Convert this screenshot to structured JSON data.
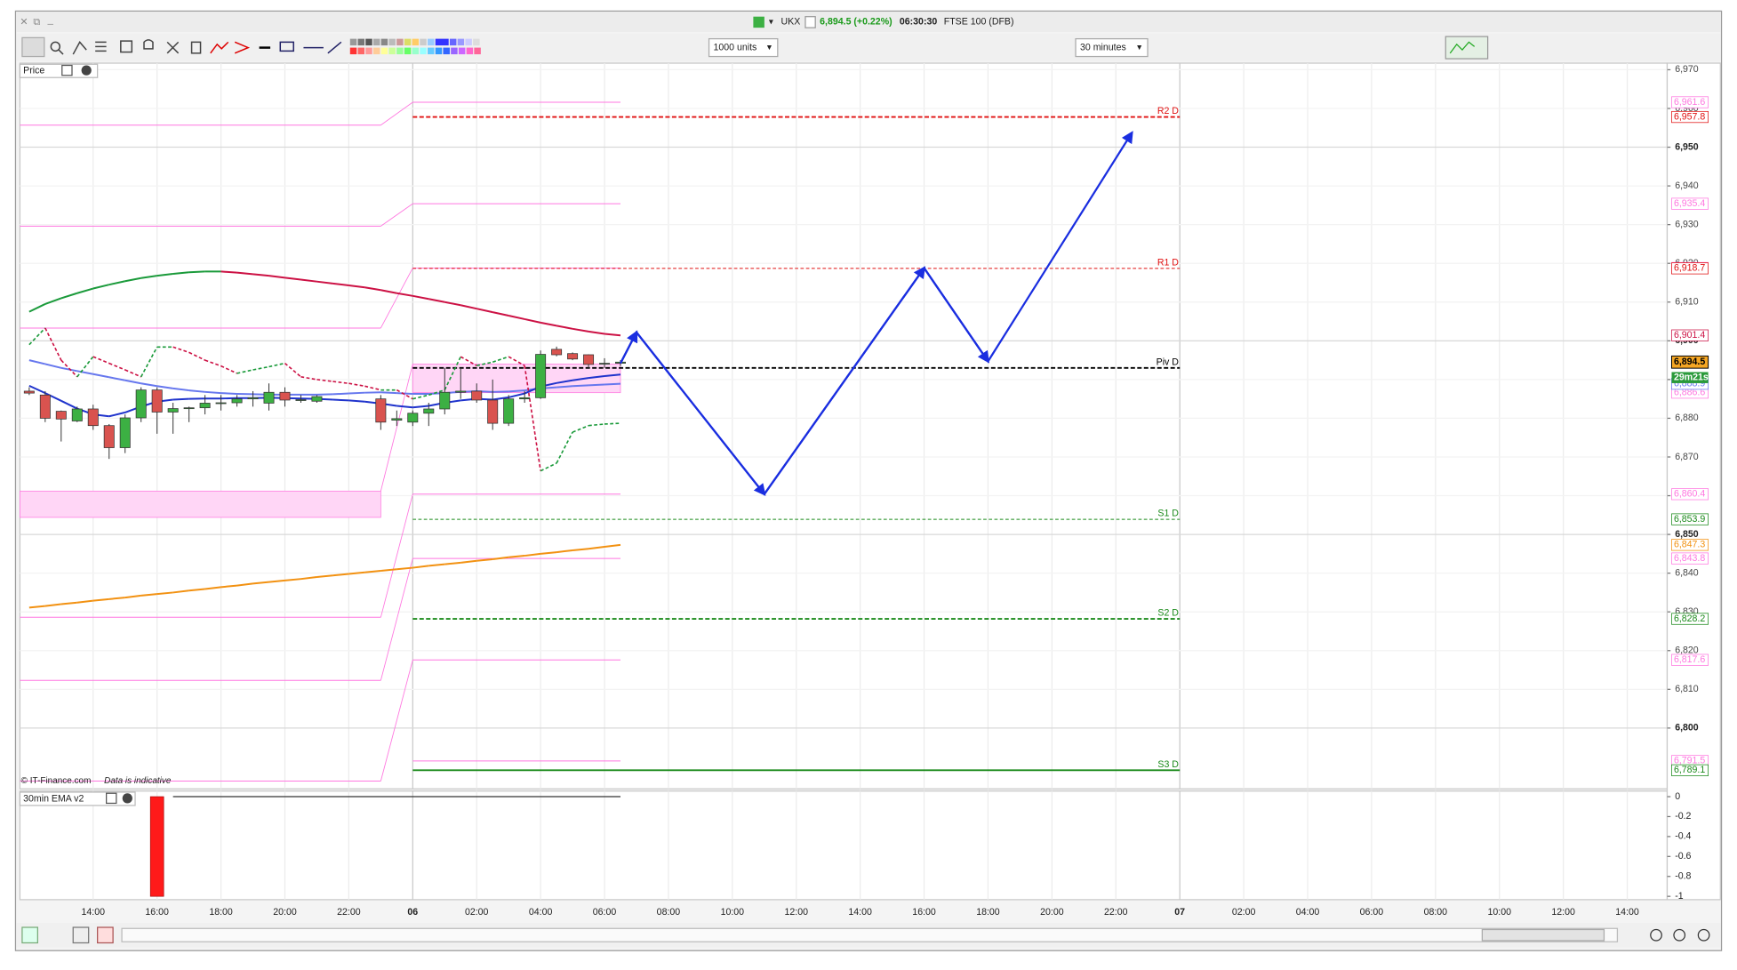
{
  "header": {
    "symbol": "UKX",
    "quote": "6,894.5 (+0.22%)",
    "time": "06:30:30",
    "instrument": "FTSE 100 (DFB)"
  },
  "toolbar": {
    "units": "1000 units",
    "interval": "30 minutes"
  },
  "chart_data": [
    {
      "type": "candlestick",
      "title": "Price",
      "footnote": "© IT-Finance.com",
      "footnote_note": "Data is indicative",
      "xlim": [
        11.71,
        63.25
      ],
      "xticks": [
        {
          "value": 14,
          "label": "14:00"
        },
        {
          "value": 16,
          "label": "16:00"
        },
        {
          "value": 18,
          "label": "18:00"
        },
        {
          "value": 20,
          "label": "20:00"
        },
        {
          "value": 22,
          "label": "22:00"
        },
        {
          "value": 24,
          "label": "06"
        },
        {
          "value": 26,
          "label": "02:00"
        },
        {
          "value": 28,
          "label": "04:00"
        },
        {
          "value": 30,
          "label": "06:00"
        },
        {
          "value": 32,
          "label": "08:00"
        },
        {
          "value": 34,
          "label": "10:00"
        },
        {
          "value": 36,
          "label": "12:00"
        },
        {
          "value": 38,
          "label": "14:00"
        },
        {
          "value": 40,
          "label": "16:00"
        },
        {
          "value": 42,
          "label": "18:00"
        },
        {
          "value": 44,
          "label": "20:00"
        },
        {
          "value": 46,
          "label": "22:00"
        },
        {
          "value": 48,
          "label": "07"
        },
        {
          "value": 50,
          "label": "02:00"
        },
        {
          "value": 52,
          "label": "04:00"
        },
        {
          "value": 54,
          "label": "06:00"
        },
        {
          "value": 56,
          "label": "08:00"
        },
        {
          "value": 58,
          "label": "10:00"
        },
        {
          "value": 60,
          "label": "12:00"
        },
        {
          "value": 62,
          "label": "14:00"
        }
      ],
      "ylim": [
        6784.3,
        6971.7
      ],
      "yticks": [
        {
          "value": 6800,
          "label": "6,800"
        },
        {
          "value": 6810,
          "label": "6,810"
        },
        {
          "value": 6820,
          "label": "6,820"
        },
        {
          "value": 6830,
          "label": "6,830"
        },
        {
          "value": 6840,
          "label": "6,840"
        },
        {
          "value": 6850,
          "label": "6,850"
        },
        {
          "value": 6860,
          "label": "6,860"
        },
        {
          "value": 6870,
          "label": "6,870"
        },
        {
          "value": 6880,
          "label": "6,880"
        },
        {
          "value": 6890,
          "label": "6,890"
        },
        {
          "value": 6900,
          "label": "6,900"
        },
        {
          "value": 6910,
          "label": "6,910"
        },
        {
          "value": 6920,
          "label": "6,920"
        },
        {
          "value": 6930,
          "label": "6,930"
        },
        {
          "value": 6940,
          "label": "6,940"
        },
        {
          "value": 6950,
          "label": "6,950"
        },
        {
          "value": 6960,
          "label": "6,960"
        },
        {
          "value": 6970,
          "label": "6,970"
        }
      ],
      "grid": true,
      "up_color": "#3cb043",
      "down_color": "#d9534f",
      "x": [
        12,
        12.5,
        13,
        13.5,
        14,
        14.5,
        15,
        15.5,
        16,
        16.5,
        17,
        17.5,
        18,
        18.5,
        19,
        19.5,
        20,
        20.5,
        21,
        21.5,
        22,
        22.5,
        23,
        23.5,
        24,
        24.5,
        25,
        25.5,
        26,
        26.5,
        27,
        27.5,
        28,
        28.5,
        29,
        29.5,
        30,
        30.5
      ],
      "open": [
        6887,
        6886,
        6881.8,
        6879.3,
        6882.4,
        6878.1,
        6872.4,
        6880.1,
        6887.3,
        6881.6,
        6882.5,
        6882.7,
        6883.9,
        6884,
        6885,
        6883.9,
        6886.7,
        6884.7,
        6884.4,
        null,
        null,
        null,
        6885,
        6879.5,
        6879,
        6881.3,
        6882.4,
        6886.7,
        6887,
        6884.7,
        6878.7,
        6885,
        6885.3,
        6897.8,
        6896.7,
        6896.4,
        6894.1,
        6894.2
      ],
      "high": [
        6888,
        6887,
        6882,
        6883,
        6883.5,
        6878.5,
        6881,
        6888,
        6888,
        6884,
        6883,
        6886,
        6886,
        6886,
        6887,
        6889,
        6888,
        6886,
        6886,
        null,
        null,
        null,
        6886,
        6882,
        6882,
        6884,
        6893,
        6893,
        6889,
        6890,
        6886,
        6887,
        6897.5,
        6898.5,
        6897,
        6896.5,
        6895.5,
        6895
      ],
      "low": [
        6886,
        6879,
        6874,
        6879,
        6877,
        6869.5,
        6871,
        6879,
        6876,
        6876,
        6879,
        6881,
        6882,
        6883,
        6883,
        6882,
        6883,
        6884,
        6884,
        null,
        null,
        null,
        6877,
        6878,
        6878,
        6878,
        6881,
        6885,
        6884,
        6877,
        6878,
        6884,
        6885,
        6896,
        6895,
        6893,
        6893,
        6893.5
      ],
      "close": [
        6886.5,
        6880,
        6879.8,
        6882.4,
        6878.1,
        6872.4,
        6880.1,
        6887.3,
        6881.6,
        6882.5,
        6882.7,
        6883.9,
        6884,
        6885,
        6885.3,
        6886.7,
        6884.7,
        6884.8,
        6885.6,
        null,
        null,
        null,
        6879,
        6879.9,
        6881.3,
        6882.4,
        6886.7,
        6887,
        6884.7,
        6878.7,
        6885,
        6885.3,
        6896.5,
        6896.4,
        6895.3,
        6893.9,
        6894.2,
        6894.5
      ],
      "series": [
        {
          "color": "#cc1144",
          "up_color": "#1a9a3a",
          "style": "solid",
          "last_label": "6,901.4",
          "values": [
            6907.5,
            6909.5,
            6911,
            6912.3,
            6913.5,
            6914.5,
            6915.4,
            6916.2,
            6916.8,
            6917.3,
            6917.7,
            6917.9,
            6917.9,
            6917.6,
            6917.2,
            6916.8,
            6916.3,
            6915.8,
            6915.3,
            6914.8,
            6914.3,
            6913.8,
            6913.1,
            6912.3,
            6911.6,
            6910.8,
            6910,
            6909.2,
            6908.3,
            6907.4,
            6906.5,
            6905.6,
            6904.7,
            6903.9,
            6903.1,
            6902.4,
            6901.8,
            6901.4
          ]
        },
        {
          "color": "#6677ee",
          "style": "solid",
          "last_label": "6,888.9",
          "values": [
            6895,
            6894,
            6893,
            6892.2,
            6891.4,
            6890.6,
            6889.8,
            6889,
            6888.3,
            6887.7,
            6887.2,
            6886.8,
            6886.5,
            6886.3,
            6886.2,
            6886.1,
            6886.1,
            6886.1,
            6886.1,
            6886.2,
            6886.4,
            6886.6,
            6886.7,
            6886.5,
            6886.3,
            6886.3,
            6886.5,
            6886.8,
            6887,
            6886.8,
            6886.9,
            6887.2,
            6887.7,
            6888,
            6888.3,
            6888.5,
            6888.7,
            6888.9
          ]
        },
        {
          "color": "#1f33cc",
          "style": "solid",
          "values": [
            6888.4,
            6886.5,
            6884.5,
            6882.5,
            6881,
            6880.5,
            6881.5,
            6883,
            6884.3,
            6884.8,
            6885,
            6885.1,
            6885.1,
            6885.2,
            6885.2,
            6885.3,
            6885.2,
            6885.1,
            6885,
            6884.8,
            6884.6,
            6884.3,
            6883.8,
            6883.2,
            6882.8,
            6883.2,
            6884,
            6884.6,
            6885,
            6884.8,
            6885.4,
            6886.4,
            6888.2,
            6889.1,
            6889.8,
            6890.4,
            6890.9,
            6891.3
          ]
        },
        {
          "color": "#f29111",
          "style": "solid",
          "last_label": "6,847.3",
          "values": [
            6831.1,
            6831.5,
            6832,
            6832.4,
            6832.9,
            6833.3,
            6833.7,
            6834.2,
            6834.6,
            6835,
            6835.5,
            6835.9,
            6836.4,
            6836.8,
            6837.3,
            6837.7,
            6838.1,
            6838.5,
            6839,
            6839.4,
            6839.8,
            6840.2,
            6840.6,
            6841,
            6841.4,
            6841.9,
            6842.3,
            6842.7,
            6843.2,
            6843.6,
            6844.1,
            6844.5,
            6845,
            6845.4,
            6845.9,
            6846.3,
            6846.8,
            6847.3
          ]
        },
        {
          "color": "#cc1144",
          "up_color": "#1a9a3a",
          "style": "dashed",
          "values": [
            6899,
            6903.3,
            6895,
            6890.7,
            6895.9,
            6894.2,
            6892.5,
            6890.7,
            6898.4,
            6898.4,
            6897,
            6895,
            6893.5,
            6891.6,
            6892.5,
            6893.3,
            6894.2,
            6890.7,
            6890,
            6889.5,
            6889,
            6888.3,
            6887.3,
            6887.3,
            6885,
            6886,
            6887.3,
            6895.9,
            6893.6,
            6894.5,
            6895.9,
            6893.6,
            6866.4,
            6868.4,
            6876.4,
            6878.1,
            6878.5,
            6878.7
          ]
        }
      ],
      "bands": {
        "color": "#ff77e0",
        "zone_color": "#ffd6f6",
        "prev_span": [
          11.71,
          23
        ],
        "span": [
          24,
          30.5
        ],
        "prev_values": [
          6955.7,
          6929.6,
          6903.3,
          6828.6,
          6812.3,
          6786.3
        ],
        "prev_zone": [
          6854.4,
          6861.2
        ],
        "values": [
          6961.6,
          6935.4,
          6918.8,
          6860.4,
          6843.8,
          6817.6,
          6791.5
        ],
        "value_labels": [
          "6,961.6",
          "6,935.4",
          "6,918.8",
          "6,860.4",
          "6,843.8",
          "6,817.6",
          "6,791.5"
        ],
        "zone": [
          6886.6,
          6894
        ],
        "zone_label": "6,886.6"
      },
      "levels_span": [
        24,
        48
      ],
      "levels": [
        {
          "label": "R2 D",
          "value": 6957.8,
          "value_label": "6,957.8",
          "color": "#e01010",
          "style": "bold-dashed"
        },
        {
          "label": "R1 D",
          "value": 6918.7,
          "value_label": "6,918.7",
          "color": "#e01010",
          "style": "dashed"
        },
        {
          "label": "Piv D",
          "value": 6893,
          "color": "#000000",
          "style": "bold-dashed"
        },
        {
          "label": "S1 D",
          "value": 6853.9,
          "value_label": "6,853.9",
          "color": "#1a8a1a",
          "style": "dashed"
        },
        {
          "label": "S2 D",
          "value": 6828.2,
          "value_label": "6,828.2",
          "color": "#1a8a1a",
          "style": "bold-dashed"
        },
        {
          "label": "S3 D",
          "value": 6789.1,
          "value_label": "6,789.1",
          "color": "#1a8a1a",
          "style": "solid"
        }
      ],
      "current": {
        "value": 6894.5,
        "label": "6,894.5",
        "countdown": "29m21s"
      },
      "projection": {
        "color": "#1a2ee0",
        "x": [
          30.5,
          31,
          35,
          40,
          42,
          46.5
        ],
        "values": [
          6894.2,
          6902.2,
          6860.4,
          6918.8,
          6894.7,
          6953.7
        ]
      }
    },
    {
      "type": "bar",
      "title": "30min EMA v2",
      "xlim": [
        11.71,
        63.25
      ],
      "ylim": [
        -1.033,
        0.056
      ],
      "yticks": [
        0,
        -0.2,
        -0.4,
        -0.6,
        -0.8,
        -1
      ],
      "x": [
        16
      ],
      "values": [
        -1
      ],
      "color": "#ff1a1a",
      "line": {
        "x": [
          16.5,
          30.5
        ],
        "values": [
          0,
          0
        ],
        "color": "#333333"
      }
    }
  ]
}
